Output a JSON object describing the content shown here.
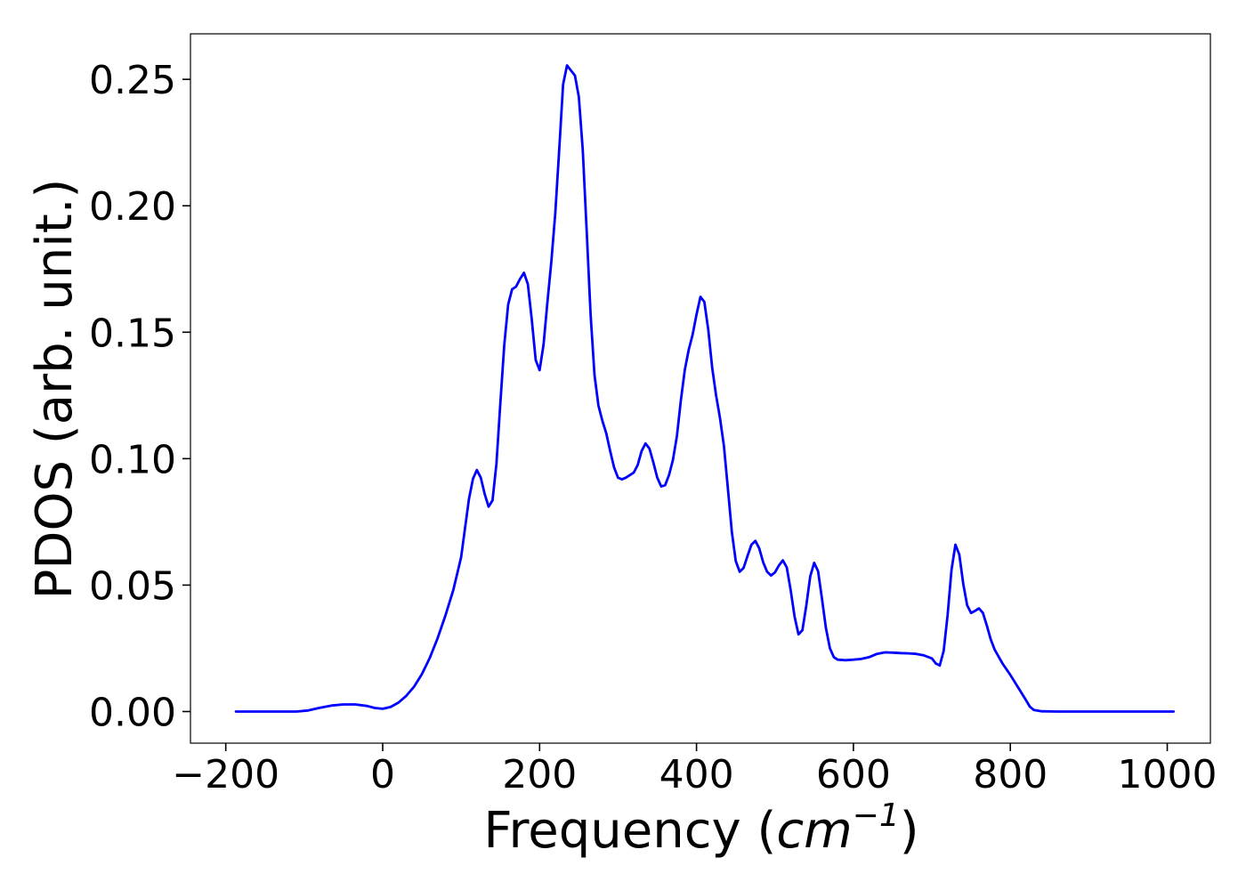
{
  "chart_data": {
    "type": "line",
    "xlabel": "Frequency (",
    "xlabel_math": "cm",
    "xlabel_exponent": "−1",
    "xlabel_close": ")",
    "ylabel": "PDOS (arb. unit.)",
    "xlim": [
      -245,
      1055
    ],
    "ylim": [
      -0.0125,
      0.268
    ],
    "xticks": [
      -200,
      0,
      200,
      400,
      600,
      800,
      1000
    ],
    "xtick_labels": [
      "−200",
      "0",
      "200",
      "400",
      "600",
      "800",
      "1000"
    ],
    "yticks": [
      0.0,
      0.05,
      0.1,
      0.15,
      0.2,
      0.25
    ],
    "ytick_labels": [
      "0.00",
      "0.05",
      "0.10",
      "0.15",
      "0.20",
      "0.25"
    ],
    "grid": false,
    "line_color": "#0000ff",
    "series": [
      {
        "points": [
          [
            -187,
            0.0
          ],
          [
            -150,
            0.0
          ],
          [
            -110,
            0.0
          ],
          [
            -95,
            0.0004
          ],
          [
            -80,
            0.0015
          ],
          [
            -65,
            0.0024
          ],
          [
            -50,
            0.0028
          ],
          [
            -35,
            0.0028
          ],
          [
            -20,
            0.0022
          ],
          [
            -10,
            0.0014
          ],
          [
            0,
            0.0011
          ],
          [
            10,
            0.0018
          ],
          [
            20,
            0.0035
          ],
          [
            30,
            0.0062
          ],
          [
            40,
            0.0098
          ],
          [
            50,
            0.0148
          ],
          [
            60,
            0.0212
          ],
          [
            70,
            0.029
          ],
          [
            80,
            0.038
          ],
          [
            90,
            0.048
          ],
          [
            100,
            0.061
          ],
          [
            110,
            0.084
          ],
          [
            115,
            0.092
          ],
          [
            120,
            0.0955
          ],
          [
            125,
            0.0925
          ],
          [
            130,
            0.086
          ],
          [
            135,
            0.081
          ],
          [
            140,
            0.0835
          ],
          [
            145,
            0.098
          ],
          [
            150,
            0.122
          ],
          [
            155,
            0.145
          ],
          [
            160,
            0.161
          ],
          [
            165,
            0.167
          ],
          [
            170,
            0.168
          ],
          [
            175,
            0.171
          ],
          [
            180,
            0.1735
          ],
          [
            185,
            0.169
          ],
          [
            190,
            0.155
          ],
          [
            195,
            0.139
          ],
          [
            200,
            0.135
          ],
          [
            205,
            0.145
          ],
          [
            210,
            0.162
          ],
          [
            215,
            0.178
          ],
          [
            220,
            0.197
          ],
          [
            225,
            0.222
          ],
          [
            230,
            0.248
          ],
          [
            235,
            0.2555
          ],
          [
            240,
            0.2535
          ],
          [
            245,
            0.2515
          ],
          [
            250,
            0.243
          ],
          [
            255,
            0.222
          ],
          [
            260,
            0.19
          ],
          [
            265,
            0.157
          ],
          [
            270,
            0.133
          ],
          [
            275,
            0.121
          ],
          [
            280,
            0.115
          ],
          [
            285,
            0.11
          ],
          [
            290,
            0.103
          ],
          [
            295,
            0.0965
          ],
          [
            300,
            0.0925
          ],
          [
            305,
            0.0918
          ],
          [
            310,
            0.0925
          ],
          [
            315,
            0.0935
          ],
          [
            320,
            0.0945
          ],
          [
            325,
            0.0975
          ],
          [
            330,
            0.103
          ],
          [
            335,
            0.106
          ],
          [
            340,
            0.104
          ],
          [
            345,
            0.0985
          ],
          [
            350,
            0.0925
          ],
          [
            355,
            0.089
          ],
          [
            360,
            0.0895
          ],
          [
            365,
            0.0935
          ],
          [
            370,
            0.0995
          ],
          [
            375,
            0.109
          ],
          [
            380,
            0.123
          ],
          [
            385,
            0.135
          ],
          [
            390,
            0.143
          ],
          [
            395,
            0.149
          ],
          [
            400,
            0.157
          ],
          [
            405,
            0.164
          ],
          [
            410,
            0.162
          ],
          [
            415,
            0.151
          ],
          [
            420,
            0.136
          ],
          [
            425,
            0.125
          ],
          [
            430,
            0.116
          ],
          [
            435,
            0.105
          ],
          [
            440,
            0.088
          ],
          [
            445,
            0.071
          ],
          [
            450,
            0.0595
          ],
          [
            455,
            0.0553
          ],
          [
            460,
            0.0568
          ],
          [
            465,
            0.0615
          ],
          [
            470,
            0.066
          ],
          [
            475,
            0.0675
          ],
          [
            480,
            0.0645
          ],
          [
            485,
            0.059
          ],
          [
            490,
            0.0553
          ],
          [
            495,
            0.0538
          ],
          [
            500,
            0.055
          ],
          [
            505,
            0.0578
          ],
          [
            510,
            0.0598
          ],
          [
            515,
            0.057
          ],
          [
            520,
            0.048
          ],
          [
            525,
            0.0375
          ],
          [
            530,
            0.0305
          ],
          [
            535,
            0.0322
          ],
          [
            540,
            0.042
          ],
          [
            545,
            0.0535
          ],
          [
            550,
            0.0588
          ],
          [
            555,
            0.0555
          ],
          [
            560,
            0.0445
          ],
          [
            565,
            0.033
          ],
          [
            570,
            0.025
          ],
          [
            575,
            0.0215
          ],
          [
            580,
            0.0205
          ],
          [
            590,
            0.0203
          ],
          [
            600,
            0.0205
          ],
          [
            610,
            0.0208
          ],
          [
            620,
            0.0215
          ],
          [
            630,
            0.0228
          ],
          [
            640,
            0.0234
          ],
          [
            650,
            0.0233
          ],
          [
            660,
            0.0231
          ],
          [
            670,
            0.023
          ],
          [
            680,
            0.0228
          ],
          [
            690,
            0.0222
          ],
          [
            700,
            0.021
          ],
          [
            705,
            0.019
          ],
          [
            710,
            0.0182
          ],
          [
            715,
            0.024
          ],
          [
            720,
            0.038
          ],
          [
            725,
            0.056
          ],
          [
            730,
            0.066
          ],
          [
            735,
            0.062
          ],
          [
            740,
            0.0505
          ],
          [
            745,
            0.042
          ],
          [
            750,
            0.039
          ],
          [
            755,
            0.0398
          ],
          [
            760,
            0.0408
          ],
          [
            765,
            0.039
          ],
          [
            770,
            0.034
          ],
          [
            775,
            0.0285
          ],
          [
            780,
            0.0245
          ],
          [
            790,
            0.019
          ],
          [
            800,
            0.0145
          ],
          [
            810,
            0.0095
          ],
          [
            820,
            0.0045
          ],
          [
            825,
            0.0019
          ],
          [
            830,
            0.0006
          ],
          [
            840,
            0.0001
          ],
          [
            860,
            0.0
          ],
          [
            1008,
            0.0
          ]
        ]
      }
    ]
  }
}
